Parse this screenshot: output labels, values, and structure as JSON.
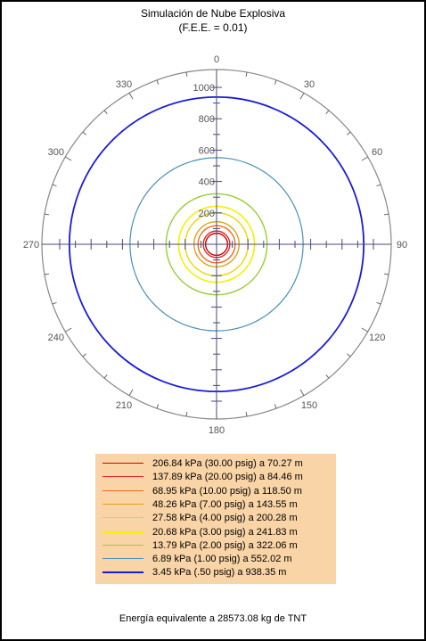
{
  "chart_data": {
    "type": "polar",
    "title": "Simulación de Nube Explosiva",
    "subtitle": "(F.E.E. = 0.01)",
    "angle_ticks": [
      0,
      30,
      60,
      90,
      120,
      150,
      180,
      210,
      240,
      270,
      300,
      330
    ],
    "radial_ticks": [
      200,
      400,
      600,
      800,
      1000
    ],
    "radial_range": [
      0,
      1000
    ],
    "grid": false,
    "legend_position": "bottom",
    "series": [
      {
        "label": "206.84 kPa (30.00 psig)  a 70.27 m",
        "pressure_kpa": 206.84,
        "pressure_psig": 30.0,
        "radius_m": 70.27,
        "color": "#cc0000",
        "width": 1.4
      },
      {
        "label": "137.89 kPa (20.00 psig)  a 84.46 m",
        "pressure_kpa": 137.89,
        "pressure_psig": 20.0,
        "radius_m": 84.46,
        "color": "#e52a2a",
        "width": 1.4
      },
      {
        "label": "68.95 kPa (10.00 psig)  a 118.50 m",
        "pressure_kpa": 68.95,
        "pressure_psig": 10.0,
        "radius_m": 118.5,
        "color": "#ef6a1e",
        "width": 1.4
      },
      {
        "label": "48.26 kPa (7.00 psig)  a 143.55 m",
        "pressure_kpa": 48.26,
        "pressure_psig": 7.0,
        "radius_m": 143.55,
        "color": "#e0a21c",
        "width": 1.4
      },
      {
        "label": "27.58 kPa (4.00 psig)  a 200.28 m",
        "pressure_kpa": 27.58,
        "pressure_psig": 4.0,
        "radius_m": 200.28,
        "color": "#f2d400",
        "width": 1.4
      },
      {
        "label": "20.68 kPa (3.00 psig)  a 241.83 m",
        "pressure_kpa": 20.68,
        "pressure_psig": 3.0,
        "radius_m": 241.83,
        "color": "#f7f000",
        "width": 1.6
      },
      {
        "label": "13.79 kPa (2.00 psig)  a 322.06 m",
        "pressure_kpa": 13.79,
        "pressure_psig": 2.0,
        "radius_m": 322.06,
        "color": "#9acd32",
        "width": 1.4
      },
      {
        "label": "6.89 kPa (1.00 psig)  a 552.02 m",
        "pressure_kpa": 6.89,
        "pressure_psig": 1.0,
        "radius_m": 552.02,
        "color": "#4a90b8",
        "width": 1.2
      },
      {
        "label": "3.45 kPa (.50 psig)  a 938.35 m",
        "pressure_kpa": 3.45,
        "pressure_psig": 0.5,
        "radius_m": 938.35,
        "color": "#1a1adc",
        "width": 1.8
      }
    ]
  },
  "colors": {
    "axis": "#4a4a7a",
    "outer_ring": "#888888",
    "legend_bg": "#f9d4a6"
  },
  "footer": "Energía equivalente a 28573.08 kg de TNT"
}
